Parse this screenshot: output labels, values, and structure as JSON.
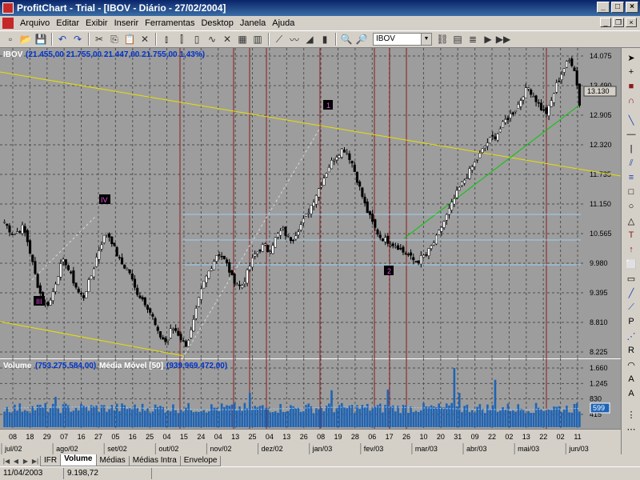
{
  "window": {
    "title": "ProfitChart - Trial - [IBOV - Diário - 27/02/2004]"
  },
  "menu": [
    "Arquivo",
    "Editar",
    "Exibir",
    "Inserir",
    "Ferramentas",
    "Desktop",
    "Janela",
    "Ajuda"
  ],
  "toolbar": {
    "symbol": "IBOV"
  },
  "price_panel": {
    "header_symbol": "IBOV",
    "header_values": "(21.455,00  21.755,00  21.447,00  21.755,00  1,43%)",
    "current_price_label": "13.130"
  },
  "volume_panel": {
    "header_label": "Volume",
    "header_value": "(753.275.584,00)",
    "ma_label": "Média Móvel [50]",
    "ma_value": "(939.969.472,00)",
    "current_label": "599"
  },
  "wave_labels": [
    "III",
    "IV",
    "1",
    "2"
  ],
  "tabs": [
    "IFR",
    "Volume",
    "Médias",
    "Médias Intra",
    "Envelope"
  ],
  "active_tab": "Volume",
  "status": {
    "date": "11/04/2003",
    "value": "9.198,72"
  },
  "colors": {
    "chart_bg": "#9d9d9d",
    "grid": "#505050",
    "cursor_lines": "#8b1a1a",
    "channel": "#e8e000",
    "trend": "#00c800",
    "volume_bars": "#1f64b4"
  },
  "chart_data": [
    {
      "type": "candlestick",
      "title": "",
      "y_ticks": [
        "14.075",
        "13.490",
        "12.905",
        "12.320",
        "11.735",
        "11.150",
        "10.565",
        "9.980",
        "9.395",
        "8.810",
        "8.225"
      ],
      "ylim": [
        8225,
        14075
      ],
      "x_day_labels": [
        "08",
        "18",
        "29",
        "07",
        "16",
        "27",
        "05",
        "16",
        "25",
        "04",
        "15",
        "24",
        "04",
        "13",
        "25",
        "04",
        "13",
        "26",
        "08",
        "19",
        "28",
        "06",
        "17",
        "26",
        "10",
        "20",
        "31",
        "09",
        "22",
        "02",
        "13",
        "22",
        "02",
        "11"
      ],
      "x_month_labels": [
        "jul/02",
        "ago/02",
        "set/02",
        "out/02",
        "nov/02",
        "dez/02",
        "jan/03",
        "fev/03",
        "mar/03",
        "abr/03",
        "mai/03",
        "jun/03"
      ],
      "close_path": [
        10800,
        10650,
        10550,
        10620,
        10700,
        10400,
        10000,
        9600,
        9300,
        9150,
        9250,
        9600,
        9900,
        10050,
        9800,
        9600,
        9400,
        9300,
        9550,
        9800,
        10150,
        10400,
        10600,
        10450,
        10200,
        10000,
        9900,
        9800,
        9500,
        9350,
        9250,
        9100,
        8900,
        8600,
        8500,
        8400,
        8700,
        8650,
        8500,
        8350,
        8550,
        8900,
        9300,
        9600,
        9800,
        10000,
        10200,
        10100,
        9950,
        9700,
        9600,
        9500,
        9700,
        9950,
        10150,
        10250,
        10350,
        10200,
        10400,
        10550,
        10650,
        10500,
        10450,
        10600,
        10750,
        10900,
        11100,
        11300,
        11500,
        11700,
        11900,
        12050,
        12150,
        12250,
        12150,
        11950,
        11650,
        11350,
        11050,
        10850,
        10650,
        10500,
        10450,
        10400,
        10350,
        10300,
        10200,
        10150,
        10050,
        10000,
        10100,
        10150,
        10300,
        10450,
        10650,
        10850,
        11050,
        11250,
        11450,
        11600,
        11750,
        11900,
        12050,
        12200,
        12350,
        12450,
        12500,
        12650,
        12800,
        12900,
        13000,
        13150,
        13350,
        13450,
        13300,
        13150,
        13000,
        12950,
        13200,
        13500,
        13700,
        13900,
        14000,
        13800,
        13130
      ],
      "volume": {
        "ylim": [
          0,
          1660
        ],
        "y_ticks": [
          "1.660",
          "1.245",
          "830",
          "415"
        ],
        "typical_range": [
          280,
          600
        ]
      }
    }
  ]
}
